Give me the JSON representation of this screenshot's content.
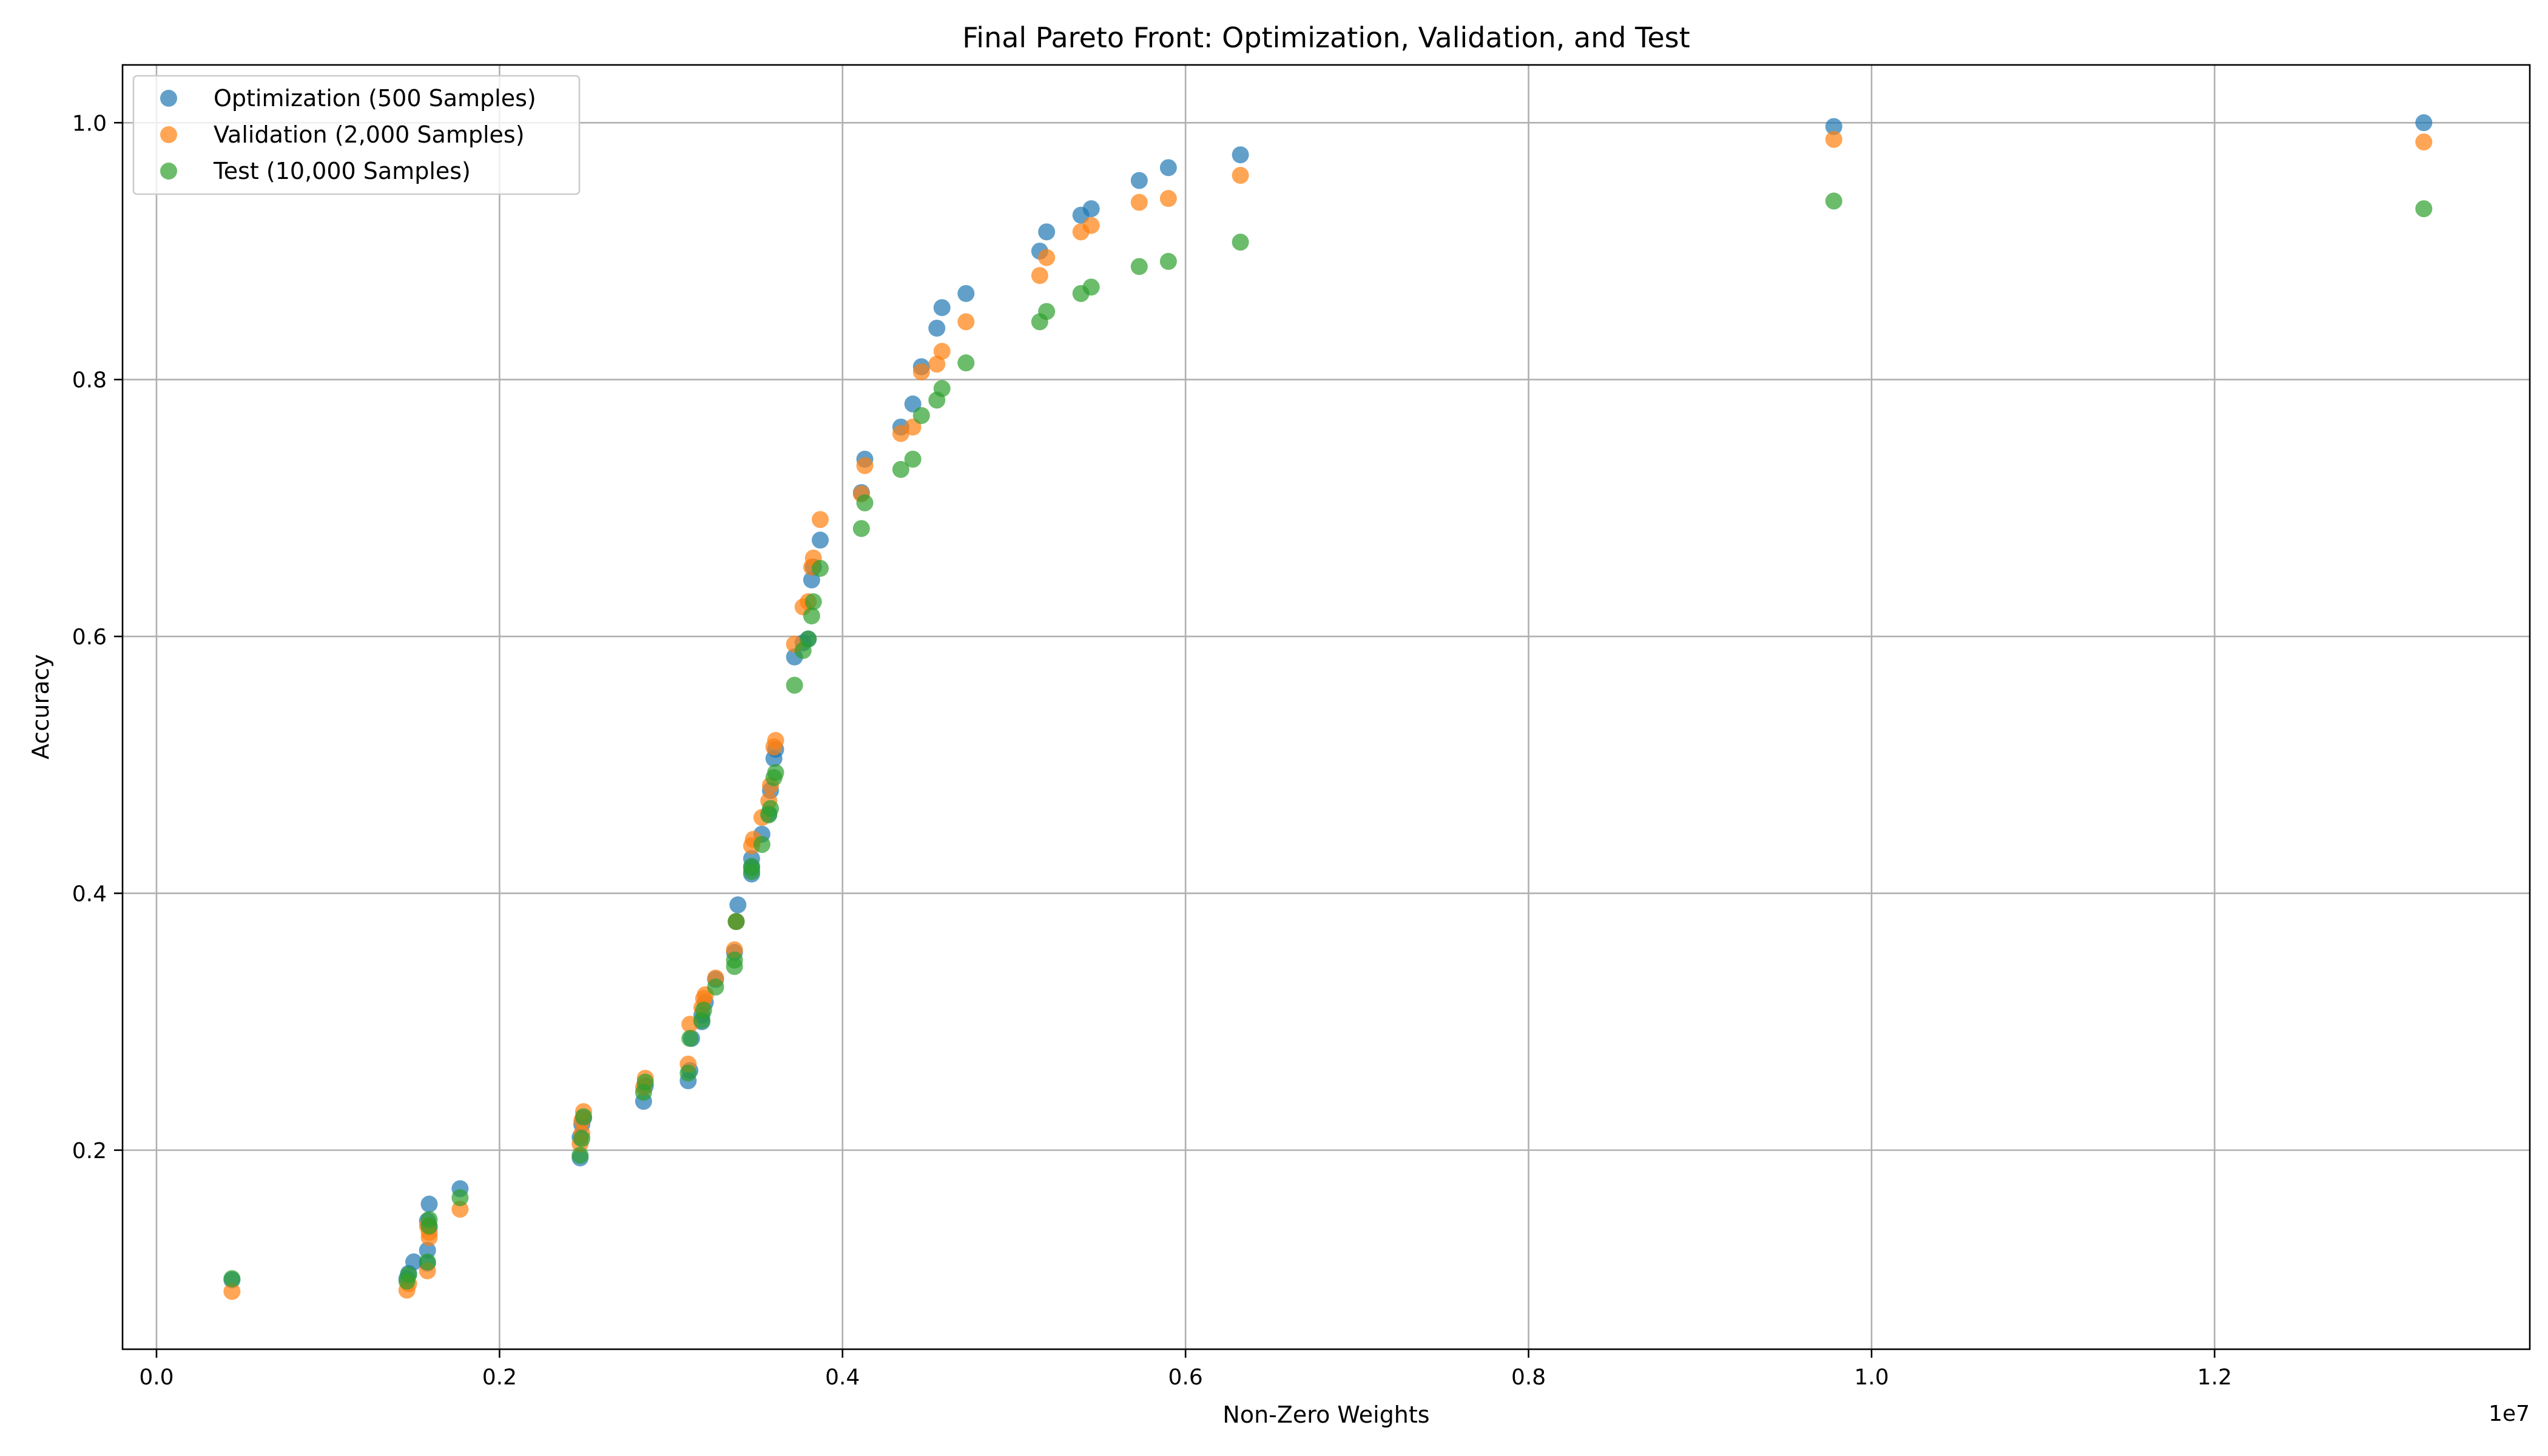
{
  "chart_data": {
    "type": "scatter",
    "title": "Final Pareto Front: Optimization, Validation, and Test",
    "xlabel": "Non-Zero Weights",
    "ylabel": "Accuracy",
    "x_offset_label": "1e7",
    "x_multiplier": 10000000,
    "xlim": [
      -0.0198,
      1.3838
    ],
    "ylim": [
      0.045,
      1.045
    ],
    "xticks": [
      0.0,
      0.2,
      0.4,
      0.6,
      0.8,
      1.0,
      1.2
    ],
    "xtick_labels": [
      "0.0",
      "0.2",
      "0.4",
      "0.6",
      "0.8",
      "1.0",
      "1.2"
    ],
    "yticks": [
      0.2,
      0.4,
      0.6,
      0.8,
      1.0
    ],
    "ytick_labels": [
      "0.2",
      "0.4",
      "0.6",
      "0.8",
      "1.0"
    ],
    "grid": true,
    "legend_position": "top-left",
    "series": [
      {
        "name": "Optimization (500 Samples)",
        "color": "#1f77b4",
        "points": [
          [
            0.044,
            0.099
          ],
          [
            0.146,
            0.1
          ],
          [
            0.147,
            0.104
          ],
          [
            0.15,
            0.113
          ],
          [
            0.158,
            0.122
          ],
          [
            0.159,
            0.158
          ],
          [
            0.158,
            0.145
          ],
          [
            0.159,
            0.14
          ],
          [
            0.158,
            0.112
          ],
          [
            0.177,
            0.17
          ],
          [
            0.247,
            0.194
          ],
          [
            0.247,
            0.21
          ],
          [
            0.248,
            0.22
          ],
          [
            0.249,
            0.225
          ],
          [
            0.284,
            0.238
          ],
          [
            0.285,
            0.25
          ],
          [
            0.31,
            0.254
          ],
          [
            0.311,
            0.262
          ],
          [
            0.312,
            0.287
          ],
          [
            0.318,
            0.3
          ],
          [
            0.318,
            0.305
          ],
          [
            0.32,
            0.315
          ],
          [
            0.326,
            0.333
          ],
          [
            0.337,
            0.354
          ],
          [
            0.338,
            0.378
          ],
          [
            0.339,
            0.391
          ],
          [
            0.347,
            0.415
          ],
          [
            0.347,
            0.42
          ],
          [
            0.347,
            0.427
          ],
          [
            0.353,
            0.446
          ],
          [
            0.357,
            0.462
          ],
          [
            0.358,
            0.48
          ],
          [
            0.36,
            0.505
          ],
          [
            0.361,
            0.512
          ],
          [
            0.372,
            0.584
          ],
          [
            0.377,
            0.595
          ],
          [
            0.38,
            0.598
          ],
          [
            0.382,
            0.644
          ],
          [
            0.383,
            0.654
          ],
          [
            0.387,
            0.675
          ],
          [
            0.411,
            0.712
          ],
          [
            0.413,
            0.738
          ],
          [
            0.434,
            0.763
          ],
          [
            0.441,
            0.781
          ],
          [
            0.446,
            0.81
          ],
          [
            0.455,
            0.84
          ],
          [
            0.458,
            0.856
          ],
          [
            0.472,
            0.867
          ],
          [
            0.515,
            0.9
          ],
          [
            0.519,
            0.915
          ],
          [
            0.539,
            0.928
          ],
          [
            0.545,
            0.933
          ],
          [
            0.573,
            0.955
          ],
          [
            0.59,
            0.965
          ],
          [
            0.632,
            0.975
          ],
          [
            0.978,
            0.997
          ],
          [
            1.322,
            1.0
          ]
        ]
      },
      {
        "name": "Validation (2,000 Samples)",
        "color": "#ff7f0e",
        "points": [
          [
            0.044,
            0.09
          ],
          [
            0.146,
            0.091
          ],
          [
            0.147,
            0.096
          ],
          [
            0.158,
            0.106
          ],
          [
            0.159,
            0.132
          ],
          [
            0.159,
            0.136
          ],
          [
            0.158,
            0.141
          ],
          [
            0.177,
            0.154
          ],
          [
            0.247,
            0.205
          ],
          [
            0.248,
            0.213
          ],
          [
            0.248,
            0.223
          ],
          [
            0.249,
            0.23
          ],
          [
            0.284,
            0.249
          ],
          [
            0.285,
            0.256
          ],
          [
            0.31,
            0.267
          ],
          [
            0.311,
            0.298
          ],
          [
            0.318,
            0.311
          ],
          [
            0.319,
            0.318
          ],
          [
            0.32,
            0.321
          ],
          [
            0.326,
            0.334
          ],
          [
            0.337,
            0.356
          ],
          [
            0.338,
            0.378
          ],
          [
            0.347,
            0.437
          ],
          [
            0.348,
            0.442
          ],
          [
            0.353,
            0.459
          ],
          [
            0.357,
            0.472
          ],
          [
            0.358,
            0.484
          ],
          [
            0.36,
            0.514
          ],
          [
            0.361,
            0.519
          ],
          [
            0.372,
            0.594
          ],
          [
            0.377,
            0.623
          ],
          [
            0.38,
            0.627
          ],
          [
            0.382,
            0.654
          ],
          [
            0.383,
            0.661
          ],
          [
            0.387,
            0.691
          ],
          [
            0.411,
            0.711
          ],
          [
            0.413,
            0.733
          ],
          [
            0.434,
            0.758
          ],
          [
            0.441,
            0.763
          ],
          [
            0.446,
            0.806
          ],
          [
            0.455,
            0.812
          ],
          [
            0.458,
            0.822
          ],
          [
            0.472,
            0.845
          ],
          [
            0.515,
            0.881
          ],
          [
            0.519,
            0.895
          ],
          [
            0.539,
            0.915
          ],
          [
            0.545,
            0.92
          ],
          [
            0.573,
            0.938
          ],
          [
            0.59,
            0.941
          ],
          [
            0.632,
            0.959
          ],
          [
            0.978,
            0.987
          ],
          [
            1.322,
            0.985
          ]
        ]
      },
      {
        "name": "Test (10,000 Samples)",
        "color": "#2ca02c",
        "points": [
          [
            0.044,
            0.1
          ],
          [
            0.146,
            0.098
          ],
          [
            0.147,
            0.103
          ],
          [
            0.158,
            0.113
          ],
          [
            0.159,
            0.141
          ],
          [
            0.159,
            0.146
          ],
          [
            0.177,
            0.163
          ],
          [
            0.247,
            0.196
          ],
          [
            0.248,
            0.209
          ],
          [
            0.249,
            0.226
          ],
          [
            0.284,
            0.245
          ],
          [
            0.285,
            0.253
          ],
          [
            0.31,
            0.26
          ],
          [
            0.311,
            0.287
          ],
          [
            0.318,
            0.301
          ],
          [
            0.319,
            0.309
          ],
          [
            0.326,
            0.327
          ],
          [
            0.337,
            0.343
          ],
          [
            0.337,
            0.348
          ],
          [
            0.338,
            0.378
          ],
          [
            0.347,
            0.417
          ],
          [
            0.347,
            0.421
          ],
          [
            0.353,
            0.438
          ],
          [
            0.357,
            0.461
          ],
          [
            0.358,
            0.466
          ],
          [
            0.36,
            0.49
          ],
          [
            0.361,
            0.494
          ],
          [
            0.372,
            0.562
          ],
          [
            0.377,
            0.589
          ],
          [
            0.38,
            0.598
          ],
          [
            0.382,
            0.616
          ],
          [
            0.383,
            0.627
          ],
          [
            0.387,
            0.653
          ],
          [
            0.411,
            0.684
          ],
          [
            0.413,
            0.704
          ],
          [
            0.434,
            0.73
          ],
          [
            0.441,
            0.738
          ],
          [
            0.446,
            0.772
          ],
          [
            0.455,
            0.784
          ],
          [
            0.458,
            0.793
          ],
          [
            0.472,
            0.813
          ],
          [
            0.515,
            0.845
          ],
          [
            0.519,
            0.853
          ],
          [
            0.539,
            0.867
          ],
          [
            0.545,
            0.872
          ],
          [
            0.573,
            0.888
          ],
          [
            0.59,
            0.892
          ],
          [
            0.632,
            0.907
          ],
          [
            0.978,
            0.939
          ],
          [
            1.322,
            0.933
          ]
        ]
      }
    ]
  }
}
